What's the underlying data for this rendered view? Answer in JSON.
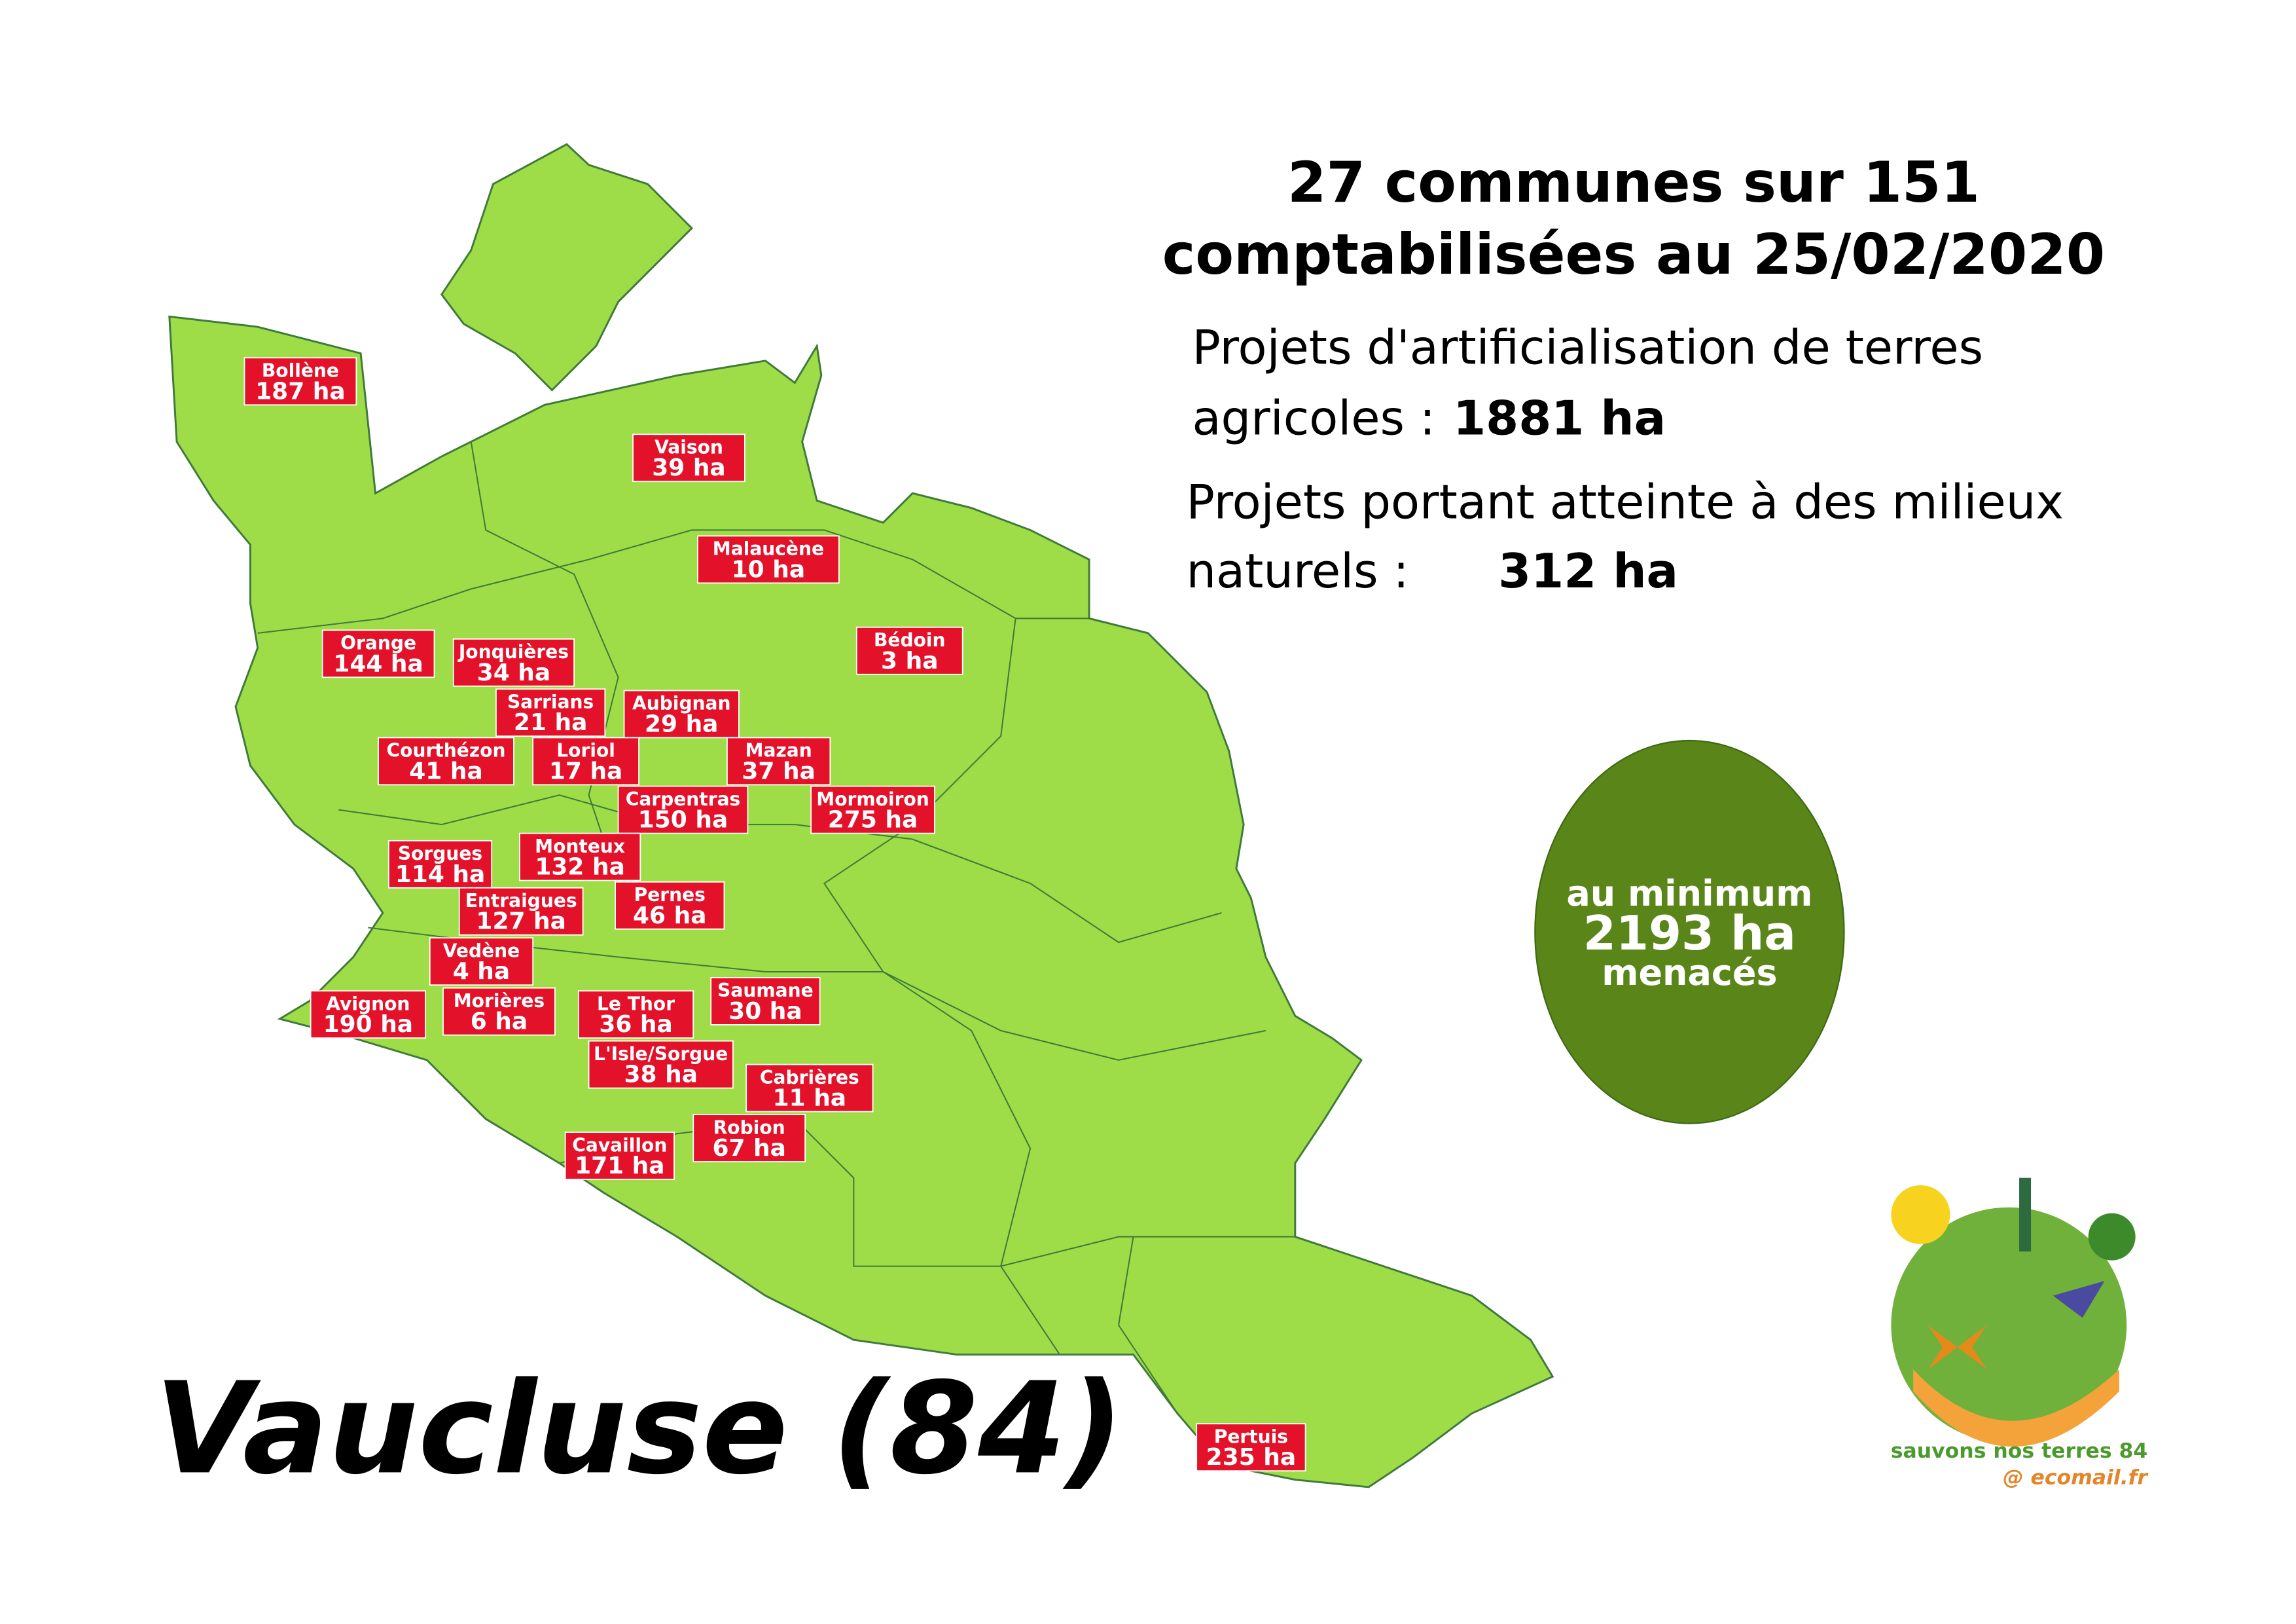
{
  "headline": [
    "27 communes sur 151",
    "comptabilisées au 25/02/2020"
  ],
  "stats": [
    {
      "line1": "Projets d'artificialisation de terres",
      "label": "agricoles :",
      "value": "1881 ha"
    },
    {
      "line1": "Projets portant atteinte à des milieux",
      "label": "naturels :",
      "value": "312 ha"
    }
  ],
  "total": {
    "top": "au minimum",
    "value": "2193 ha",
    "bottom": "menacés"
  },
  "map_title": "Vaucluse (84)",
  "logo": {
    "name": "sauvons nos terres 84",
    "site": "@ ecomail.fr"
  },
  "communes": [
    {
      "name": "Bollène",
      "area": "187 ha"
    },
    {
      "name": "Vaison",
      "area": "39 ha"
    },
    {
      "name": "Malaucène",
      "area": "10 ha"
    },
    {
      "name": "Orange",
      "area": "144 ha"
    },
    {
      "name": "Jonquières",
      "area": "34 ha"
    },
    {
      "name": "Bédoin",
      "area": "3 ha"
    },
    {
      "name": "Sarrians",
      "area": "21 ha"
    },
    {
      "name": "Aubignan",
      "area": "29 ha"
    },
    {
      "name": "Courthézon",
      "area": "41 ha"
    },
    {
      "name": "Loriol",
      "area": "17 ha"
    },
    {
      "name": "Mazan",
      "area": "37 ha"
    },
    {
      "name": "Carpentras",
      "area": "150 ha"
    },
    {
      "name": "Mormoiron",
      "area": "275 ha"
    },
    {
      "name": "Sorgues",
      "area": "114 ha"
    },
    {
      "name": "Monteux",
      "area": "132 ha"
    },
    {
      "name": "Entraigues",
      "area": "127 ha"
    },
    {
      "name": "Pernes",
      "area": "46 ha"
    },
    {
      "name": "Vedène",
      "area": "4 ha"
    },
    {
      "name": "Avignon",
      "area": "190 ha"
    },
    {
      "name": "Morières",
      "area": "6 ha"
    },
    {
      "name": "Le Thor",
      "area": "36 ha"
    },
    {
      "name": "Saumane",
      "area": "30 ha"
    },
    {
      "name": "L'Isle/Sorgue",
      "area": "38 ha"
    },
    {
      "name": "Cabrières",
      "area": "11 ha"
    },
    {
      "name": "Robion",
      "area": "67 ha"
    },
    {
      "name": "Cavaillon",
      "area": "171 ha"
    },
    {
      "name": "Pertuis",
      "area": "235 ha"
    }
  ]
}
